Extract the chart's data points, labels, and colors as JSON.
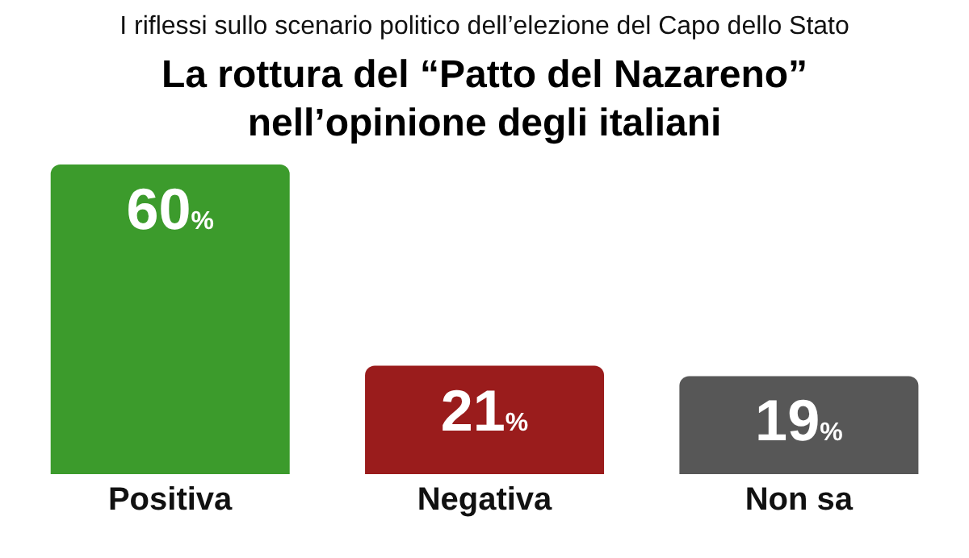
{
  "chart_data": {
    "type": "bar",
    "subtitle": "I riflessi sullo scenario politico dell’elezione del Capo dello Stato",
    "title": "La rottura del “Patto del Nazareno”\nnell’opinione degli italiani",
    "categories": [
      "Positiva",
      "Negativa",
      "Non sa"
    ],
    "values": [
      60,
      21,
      19
    ],
    "colors": [
      "#3c9b2c",
      "#9a1c1c",
      "#575757"
    ],
    "value_labels": [
      "60%",
      "21%",
      "19%"
    ],
    "grid": false,
    "legend": false
  }
}
